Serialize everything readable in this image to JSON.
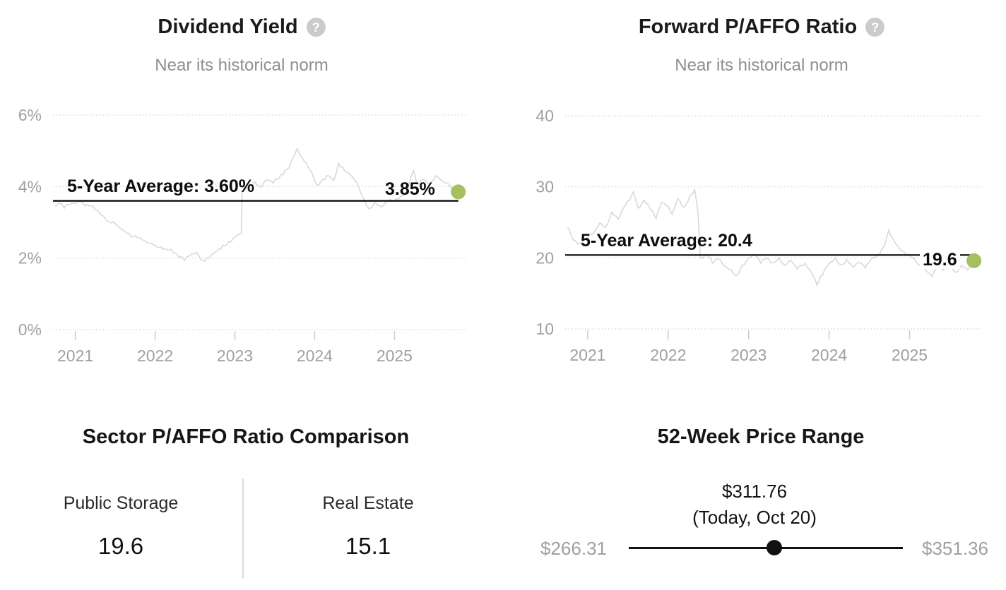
{
  "colors": {
    "accent_green": "#a6c05f",
    "series_line": "#d9d9d9",
    "average_line": "#000000"
  },
  "icons": {
    "help": "?"
  },
  "chart_data": [
    {
      "type": "line",
      "title": "Dividend Yield",
      "subtitle": "Near its historical norm",
      "average": 3.6,
      "average_label": "5-Year Average: 3.60%",
      "current": 3.85,
      "current_label": "3.85%",
      "xlim": [
        2020.72,
        2025.9
      ],
      "ylim": [
        0,
        6
      ],
      "x_ticks": [
        2021,
        2022,
        2023,
        2024,
        2025
      ],
      "y_ticks": [
        0,
        2,
        4,
        6
      ],
      "y_tick_labels": [
        "0%",
        "2%",
        "4%",
        "6%"
      ],
      "grid": "horizontal-dotted",
      "line_color": "#d9d9d9",
      "marker_color": "#a6c05f",
      "series": [
        {
          "name": "Dividend Yield",
          "points": [
            [
              2020.75,
              3.45
            ],
            [
              2020.8,
              3.55
            ],
            [
              2020.86,
              3.42
            ],
            [
              2020.93,
              3.5
            ],
            [
              2021.0,
              3.55
            ],
            [
              2021.06,
              3.6
            ],
            [
              2021.12,
              3.48
            ],
            [
              2021.2,
              3.45
            ],
            [
              2021.3,
              3.28
            ],
            [
              2021.4,
              3.05
            ],
            [
              2021.5,
              2.95
            ],
            [
              2021.6,
              2.78
            ],
            [
              2021.7,
              2.62
            ],
            [
              2021.8,
              2.56
            ],
            [
              2021.9,
              2.45
            ],
            [
              2022.0,
              2.35
            ],
            [
              2022.1,
              2.26
            ],
            [
              2022.2,
              2.22
            ],
            [
              2022.3,
              2.05
            ],
            [
              2022.37,
              1.96
            ],
            [
              2022.45,
              2.1
            ],
            [
              2022.52,
              2.16
            ],
            [
              2022.6,
              1.9
            ],
            [
              2022.7,
              2.06
            ],
            [
              2022.8,
              2.26
            ],
            [
              2022.9,
              2.38
            ],
            [
              2023.0,
              2.58
            ],
            [
              2023.06,
              2.68
            ],
            [
              2023.08,
              2.72
            ],
            [
              2023.09,
              3.88
            ],
            [
              2023.15,
              3.95
            ],
            [
              2023.25,
              4.12
            ],
            [
              2023.32,
              3.98
            ],
            [
              2023.4,
              4.22
            ],
            [
              2023.48,
              4.12
            ],
            [
              2023.58,
              4.3
            ],
            [
              2023.68,
              4.55
            ],
            [
              2023.78,
              5.05
            ],
            [
              2023.84,
              4.8
            ],
            [
              2023.9,
              4.62
            ],
            [
              2023.97,
              4.35
            ],
            [
              2024.03,
              4.0
            ],
            [
              2024.1,
              4.18
            ],
            [
              2024.18,
              4.32
            ],
            [
              2024.24,
              4.15
            ],
            [
              2024.3,
              4.65
            ],
            [
              2024.38,
              4.45
            ],
            [
              2024.46,
              4.3
            ],
            [
              2024.53,
              4.1
            ],
            [
              2024.6,
              3.72
            ],
            [
              2024.68,
              3.38
            ],
            [
              2024.76,
              3.52
            ],
            [
              2024.84,
              3.42
            ],
            [
              2024.92,
              3.62
            ],
            [
              2025.0,
              3.6
            ],
            [
              2025.08,
              3.72
            ],
            [
              2025.16,
              3.88
            ],
            [
              2025.24,
              4.48
            ],
            [
              2025.28,
              4.05
            ],
            [
              2025.36,
              4.22
            ],
            [
              2025.44,
              4.05
            ],
            [
              2025.52,
              4.3
            ],
            [
              2025.6,
              4.15
            ],
            [
              2025.68,
              4.05
            ],
            [
              2025.74,
              3.95
            ],
            [
              2025.8,
              3.85
            ]
          ]
        }
      ]
    },
    {
      "type": "line",
      "title": "Forward P/AFFO Ratio",
      "subtitle": "Near its historical norm",
      "average": 20.4,
      "average_label": "5-Year Average: 20.4",
      "current": 19.6,
      "current_label": "19.6",
      "xlim": [
        2020.72,
        2025.9
      ],
      "ylim": [
        10,
        40
      ],
      "x_ticks": [
        2021,
        2022,
        2023,
        2024,
        2025
      ],
      "y_ticks": [
        10,
        20,
        30,
        40
      ],
      "y_tick_labels": [
        "10",
        "20",
        "30",
        "40"
      ],
      "grid": "horizontal-dotted",
      "line_color": "#d9d9d9",
      "marker_color": "#a6c05f",
      "series": [
        {
          "name": "Forward P/AFFO Ratio",
          "points": [
            [
              2020.75,
              24.3
            ],
            [
              2020.82,
              22.6
            ],
            [
              2020.9,
              21.9
            ],
            [
              2021.0,
              23.0
            ],
            [
              2021.08,
              23.6
            ],
            [
              2021.15,
              24.8
            ],
            [
              2021.22,
              24.2
            ],
            [
              2021.3,
              26.3
            ],
            [
              2021.38,
              25.4
            ],
            [
              2021.45,
              27.2
            ],
            [
              2021.52,
              28.2
            ],
            [
              2021.57,
              29.3
            ],
            [
              2021.63,
              26.9
            ],
            [
              2021.7,
              28.1
            ],
            [
              2021.78,
              27.0
            ],
            [
              2021.85,
              25.6
            ],
            [
              2021.92,
              27.8
            ],
            [
              2022.0,
              27.2
            ],
            [
              2022.05,
              26.2
            ],
            [
              2022.12,
              28.3
            ],
            [
              2022.2,
              27.0
            ],
            [
              2022.27,
              28.6
            ],
            [
              2022.33,
              29.6
            ],
            [
              2022.37,
              26.5
            ],
            [
              2022.4,
              19.8
            ],
            [
              2022.48,
              20.6
            ],
            [
              2022.55,
              19.3
            ],
            [
              2022.62,
              20.0
            ],
            [
              2022.7,
              18.8
            ],
            [
              2022.78,
              18.2
            ],
            [
              2022.85,
              17.4
            ],
            [
              2022.92,
              18.8
            ],
            [
              2023.0,
              19.9
            ],
            [
              2023.08,
              20.5
            ],
            [
              2023.15,
              19.4
            ],
            [
              2023.22,
              20.0
            ],
            [
              2023.3,
              19.2
            ],
            [
              2023.38,
              19.8
            ],
            [
              2023.45,
              18.9
            ],
            [
              2023.52,
              19.6
            ],
            [
              2023.6,
              18.6
            ],
            [
              2023.7,
              19.2
            ],
            [
              2023.78,
              18.0
            ],
            [
              2023.85,
              16.3
            ],
            [
              2023.92,
              17.8
            ],
            [
              2024.0,
              19.2
            ],
            [
              2024.08,
              19.9
            ],
            [
              2024.15,
              18.9
            ],
            [
              2024.22,
              19.6
            ],
            [
              2024.3,
              18.7
            ],
            [
              2024.38,
              19.4
            ],
            [
              2024.45,
              18.6
            ],
            [
              2024.52,
              19.8
            ],
            [
              2024.6,
              20.3
            ],
            [
              2024.68,
              21.5
            ],
            [
              2024.74,
              23.8
            ],
            [
              2024.8,
              22.5
            ],
            [
              2024.88,
              21.2
            ],
            [
              2024.95,
              20.6
            ],
            [
              2025.02,
              20.2
            ],
            [
              2025.1,
              19.3
            ],
            [
              2025.18,
              18.4
            ],
            [
              2025.28,
              17.4
            ],
            [
              2025.35,
              18.9
            ],
            [
              2025.42,
              18.3
            ],
            [
              2025.5,
              18.8
            ],
            [
              2025.58,
              17.9
            ],
            [
              2025.65,
              18.9
            ],
            [
              2025.72,
              18.3
            ],
            [
              2025.8,
              19.6
            ]
          ]
        }
      ]
    }
  ],
  "sector_comparison": {
    "title": "Sector P/AFFO Ratio Comparison",
    "columns": [
      {
        "label": "Public Storage",
        "value": "19.6"
      },
      {
        "label": "Real Estate",
        "value": "15.1"
      }
    ]
  },
  "price_range": {
    "title": "52-Week Price Range",
    "current_price": "$311.76",
    "current_note": "(Today, Oct 20)",
    "low": "$266.31",
    "high": "$351.36",
    "low_value": 266.31,
    "high_value": 351.36,
    "current_value": 311.76
  }
}
